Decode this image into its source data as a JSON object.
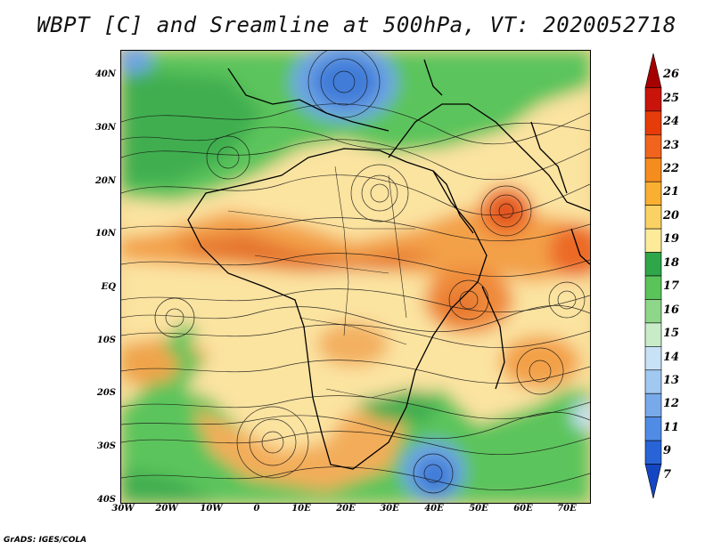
{
  "title": "WBPT [C] and Sreamline at 500hPa, VT: 2020052718",
  "footer": "GrADS: IGES/COLA",
  "lat_labels": [
    "40N",
    "30N",
    "20N",
    "10N",
    "EQ",
    "10S",
    "20S",
    "30S",
    "40S"
  ],
  "lon_labels": [
    "30W",
    "20W",
    "10W",
    "0",
    "10E",
    "20E",
    "30E",
    "40E",
    "50E",
    "60E",
    "70E"
  ],
  "colorbar": {
    "labels": [
      "26",
      "25",
      "24",
      "23",
      "22",
      "21",
      "20",
      "19",
      "18",
      "17",
      "16",
      "15",
      "14",
      "13",
      "12",
      "11",
      "9",
      "7"
    ],
    "colors": [
      "#a50000",
      "#c8140a",
      "#e63c0a",
      "#f0641e",
      "#f58c1e",
      "#f8af32",
      "#fad264",
      "#fdeb9a",
      "#2fa64a",
      "#5ac35a",
      "#8ed68a",
      "#c8ebc8",
      "#c8e1f5",
      "#a0c8f0",
      "#78aaeb",
      "#508ce6",
      "#2864d7",
      "#1446c3"
    ]
  }
}
